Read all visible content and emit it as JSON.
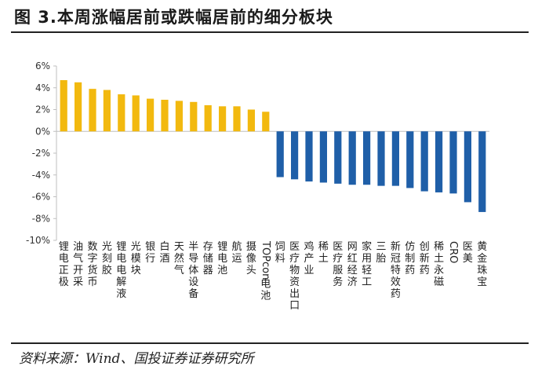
{
  "figure": {
    "title": "图 3.本周涨幅居前或跌幅居前的细分板块",
    "source": "资料来源：Wind、国投证券证券研究所"
  },
  "colors": {
    "up": "#F2B90F",
    "down": "#1F5FA8",
    "axis": "#bfbfbf"
  },
  "chart_data": {
    "type": "bar",
    "title": "",
    "xlabel": "",
    "ylabel": "",
    "ylim": [
      -10,
      6
    ],
    "yticks": [
      6,
      4,
      2,
      0,
      -2,
      -4,
      -6,
      -8,
      -10
    ],
    "ytick_labels": [
      "6%",
      "4%",
      "2%",
      "0%",
      "-2%",
      "-4%",
      "-6%",
      "-8%",
      "-10%"
    ],
    "categories": [
      "锂电正极",
      "油气开采",
      "数字货币",
      "光刻胶",
      "锂电电解液",
      "光模块",
      "银行",
      "白酒",
      "天然气",
      "半导体设备",
      "存储器",
      "锂电池",
      "航运",
      "摄像头",
      "TOPcon电池",
      "饲料",
      "医疗物资出口",
      "鸡产业",
      "稀土",
      "医疗服务",
      "网红经济",
      "家用轻工",
      "三胎",
      "新冠特效药",
      "仿制药",
      "创新药",
      "稀土永磁",
      "CRO",
      "医美",
      "黄金珠宝"
    ],
    "values": [
      4.7,
      4.5,
      3.9,
      3.8,
      3.4,
      3.3,
      3.0,
      2.9,
      2.8,
      2.7,
      2.4,
      2.3,
      2.3,
      2.0,
      1.8,
      -4.2,
      -4.4,
      -4.6,
      -4.7,
      -4.8,
      -4.9,
      -4.9,
      -5.0,
      -5.0,
      -5.2,
      -5.5,
      -5.6,
      -5.7,
      -6.5,
      -7.4
    ],
    "grid": false,
    "legend": "none"
  }
}
